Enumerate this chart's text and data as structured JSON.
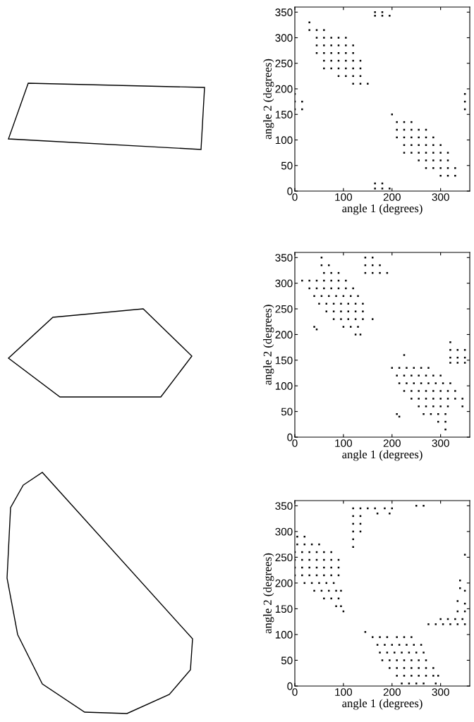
{
  "chart_data": [
    {
      "type": "scatter",
      "xlabel": "angle 1 (degrees)",
      "ylabel": "angle 2 (degrees)",
      "xlim": [
        0,
        360
      ],
      "ylim": [
        0,
        360
      ],
      "xticks": [
        0,
        100,
        200,
        300
      ],
      "yticks": [
        0,
        50,
        100,
        150,
        200,
        250,
        300,
        350
      ],
      "marker": "square",
      "grid": false,
      "legend": false,
      "series": [
        {
          "color": "#000000",
          "x": [
            30,
            30,
            45,
            60,
            45,
            60,
            75,
            90,
            105,
            45,
            60,
            75,
            90,
            105,
            120,
            45,
            60,
            75,
            90,
            105,
            120,
            60,
            75,
            90,
            105,
            120,
            135,
            60,
            75,
            90,
            105,
            120,
            135,
            90,
            105,
            120,
            135,
            120,
            135,
            150,
            165,
            180,
            165,
            180,
            195,
            0,
            0,
            15,
            0,
            15,
            350,
            350,
            350,
            165,
            180,
            165,
            180,
            195,
            200,
            210,
            225,
            240,
            210,
            225,
            240,
            255,
            270,
            210,
            225,
            240,
            255,
            270,
            285,
            225,
            240,
            255,
            270,
            285,
            300,
            225,
            240,
            255,
            270,
            285,
            300,
            315,
            255,
            270,
            285,
            300,
            315,
            270,
            285,
            300,
            315,
            330,
            300,
            315,
            330
          ],
          "values": [
            330,
            315,
            315,
            315,
            300,
            300,
            300,
            300,
            300,
            285,
            285,
            285,
            285,
            285,
            285,
            270,
            270,
            270,
            270,
            270,
            270,
            255,
            255,
            255,
            255,
            255,
            255,
            240,
            240,
            240,
            240,
            240,
            240,
            225,
            225,
            225,
            225,
            210,
            210,
            210,
            350,
            350,
            343,
            343,
            343,
            190,
            175,
            175,
            160,
            160,
            190,
            175,
            160,
            15,
            15,
            5,
            5,
            5,
            150,
            135,
            135,
            135,
            120,
            120,
            120,
            120,
            120,
            105,
            105,
            105,
            105,
            105,
            105,
            90,
            90,
            90,
            90,
            90,
            90,
            75,
            75,
            75,
            75,
            75,
            75,
            75,
            60,
            60,
            60,
            60,
            60,
            45,
            45,
            45,
            45,
            45,
            30,
            30,
            30
          ]
        }
      ]
    },
    {
      "type": "scatter",
      "xlabel": "angle 1 (degrees)",
      "ylabel": "angle 2 (degrees)",
      "xlim": [
        0,
        360
      ],
      "ylim": [
        0,
        360
      ],
      "xticks": [
        0,
        100,
        200,
        300
      ],
      "yticks": [
        0,
        50,
        100,
        150,
        200,
        250,
        300,
        350
      ],
      "marker": "square",
      "grid": false,
      "legend": false,
      "series": [
        {
          "color": "#000000",
          "x": [
            55,
            55,
            70,
            60,
            75,
            90,
            15,
            30,
            45,
            60,
            75,
            90,
            105,
            30,
            45,
            60,
            75,
            90,
            105,
            120,
            40,
            55,
            70,
            85,
            100,
            115,
            130,
            50,
            65,
            80,
            95,
            110,
            125,
            140,
            65,
            80,
            95,
            110,
            125,
            140,
            80,
            95,
            110,
            125,
            140,
            160,
            100,
            115,
            130,
            125,
            135,
            40,
            45,
            145,
            160,
            145,
            160,
            175,
            145,
            160,
            175,
            190,
            225,
            200,
            215,
            230,
            245,
            260,
            275,
            210,
            225,
            240,
            255,
            270,
            285,
            300,
            215,
            230,
            245,
            260,
            275,
            290,
            305,
            320,
            225,
            240,
            255,
            270,
            285,
            300,
            315,
            330,
            240,
            255,
            270,
            285,
            300,
            315,
            330,
            345,
            255,
            270,
            285,
            300,
            315,
            345,
            265,
            280,
            295,
            310,
            295,
            310,
            310,
            210,
            215,
            320,
            320,
            335,
            350,
            320,
            335,
            350,
            320,
            335,
            350
          ],
          "values": [
            350,
            335,
            335,
            320,
            320,
            320,
            305,
            305,
            305,
            305,
            305,
            305,
            305,
            290,
            290,
            290,
            290,
            290,
            290,
            290,
            275,
            275,
            275,
            275,
            275,
            275,
            275,
            260,
            260,
            260,
            260,
            260,
            260,
            260,
            245,
            245,
            245,
            245,
            245,
            245,
            230,
            230,
            230,
            230,
            230,
            230,
            215,
            215,
            215,
            200,
            200,
            215,
            210,
            350,
            350,
            335,
            335,
            335,
            320,
            320,
            320,
            320,
            160,
            135,
            135,
            135,
            135,
            135,
            135,
            120,
            120,
            120,
            120,
            120,
            120,
            120,
            105,
            105,
            105,
            105,
            105,
            105,
            105,
            105,
            90,
            90,
            90,
            90,
            90,
            90,
            90,
            90,
            75,
            75,
            75,
            75,
            75,
            75,
            75,
            75,
            60,
            60,
            60,
            60,
            60,
            60,
            45,
            45,
            45,
            45,
            30,
            30,
            15,
            45,
            40,
            185,
            170,
            170,
            170,
            155,
            155,
            155,
            145,
            145,
            145
          ]
        }
      ]
    },
    {
      "type": "scatter",
      "xlabel": "angle 1 (degrees)",
      "ylabel": "angle 2 (degrees)",
      "xlim": [
        0,
        360
      ],
      "ylim": [
        0,
        360
      ],
      "xticks": [
        0,
        100,
        200,
        300
      ],
      "yticks": [
        0,
        50,
        100,
        150,
        200,
        250,
        300,
        350
      ],
      "marker": "square",
      "grid": false,
      "legend": false,
      "series": [
        {
          "color": "#000000",
          "x": [
            5,
            20,
            5,
            20,
            35,
            50,
            0,
            15,
            30,
            45,
            60,
            75,
            0,
            15,
            30,
            45,
            60,
            75,
            90,
            0,
            15,
            30,
            45,
            60,
            75,
            90,
            0,
            15,
            30,
            45,
            60,
            75,
            90,
            20,
            35,
            50,
            65,
            80,
            40,
            55,
            70,
            85,
            95,
            60,
            75,
            90,
            85,
            95,
            100,
            120,
            135,
            150,
            165,
            185,
            200,
            120,
            135,
            170,
            195,
            120,
            135,
            120,
            135,
            120,
            120,
            250,
            265,
            340,
            340,
            350,
            335,
            350,
            335,
            350,
            300,
            315,
            330,
            345,
            275,
            290,
            305,
            320,
            335,
            350,
            350,
            145,
            160,
            175,
            190,
            210,
            225,
            240,
            170,
            185,
            200,
            215,
            230,
            245,
            260,
            175,
            190,
            205,
            220,
            235,
            250,
            265,
            180,
            195,
            210,
            225,
            240,
            255,
            270,
            195,
            210,
            225,
            240,
            255,
            270,
            285,
            210,
            225,
            240,
            255,
            270,
            285,
            295,
            220,
            235,
            250,
            265,
            290
          ],
          "values": [
            290,
            290,
            275,
            275,
            275,
            275,
            260,
            260,
            260,
            260,
            260,
            260,
            245,
            245,
            245,
            245,
            245,
            245,
            245,
            230,
            230,
            230,
            230,
            230,
            230,
            230,
            215,
            215,
            215,
            215,
            215,
            215,
            215,
            200,
            200,
            200,
            200,
            200,
            185,
            185,
            185,
            185,
            185,
            170,
            170,
            170,
            155,
            155,
            145,
            345,
            345,
            345,
            345,
            345,
            345,
            330,
            330,
            335,
            335,
            315,
            315,
            300,
            300,
            285,
            270,
            350,
            350,
            205,
            190,
            185,
            165,
            160,
            145,
            145,
            130,
            130,
            130,
            130,
            120,
            120,
            120,
            120,
            120,
            120,
            255,
            105,
            95,
            95,
            95,
            95,
            95,
            95,
            80,
            80,
            80,
            80,
            80,
            80,
            80,
            65,
            65,
            65,
            65,
            65,
            65,
            65,
            50,
            50,
            50,
            50,
            50,
            50,
            50,
            35,
            35,
            35,
            35,
            35,
            35,
            35,
            20,
            20,
            20,
            20,
            20,
            20,
            20,
            5,
            5,
            5,
            5,
            5
          ]
        }
      ]
    }
  ]
}
